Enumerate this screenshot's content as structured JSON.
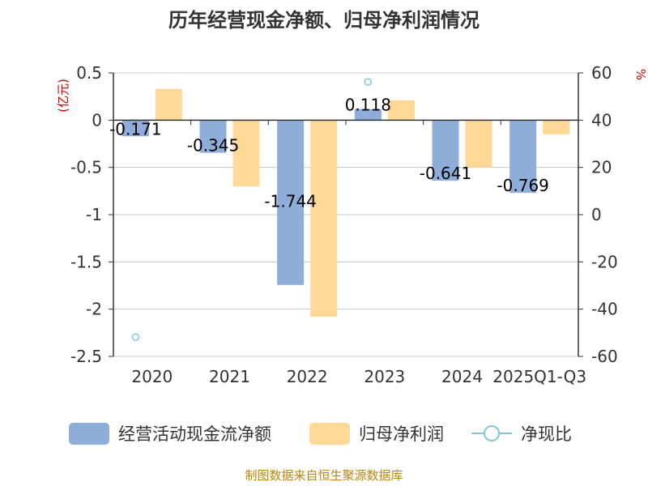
{
  "chart_data": {
    "type": "bar",
    "title": "历年经营现金净额、归母净利润情况",
    "categories": [
      "2020",
      "2021",
      "2022",
      "2023",
      "2024",
      "2025Q1-Q3"
    ],
    "left_unit": "(亿元)",
    "right_unit": "%",
    "left_ylim": [
      -2.5,
      0.5
    ],
    "left_ticks": [
      "0.5",
      "0",
      "-0.5",
      "-1",
      "-1.5",
      "-2",
      "-2.5"
    ],
    "right_ylim": [
      -60,
      60
    ],
    "right_ticks": [
      "60",
      "40",
      "20",
      "0",
      "-20",
      "-40",
      "-60"
    ],
    "grid": true,
    "legend_position": "bottom",
    "series": [
      {
        "name": "经营活动现金流净额",
        "type": "bar",
        "axis": "left",
        "color": "#8eadd9",
        "values": [
          -0.171,
          -0.345,
          -1.744,
          0.118,
          -0.641,
          -0.769
        ],
        "labels": [
          "-0.171",
          "-0.345",
          "-1.744",
          "0.118",
          "-0.641",
          "-0.769"
        ]
      },
      {
        "name": "归母净利润",
        "type": "bar",
        "axis": "left",
        "color": "#fed894",
        "values": [
          0.33,
          -0.7,
          -2.08,
          0.21,
          -0.5,
          -0.15
        ]
      },
      {
        "name": "净现比",
        "type": "scatter",
        "axis": "right",
        "color": "#7ec8d6",
        "values": [
          -51.8,
          null,
          null,
          56.2,
          null,
          null
        ]
      }
    ],
    "source": "制图数据来自恒生聚源数据库"
  }
}
